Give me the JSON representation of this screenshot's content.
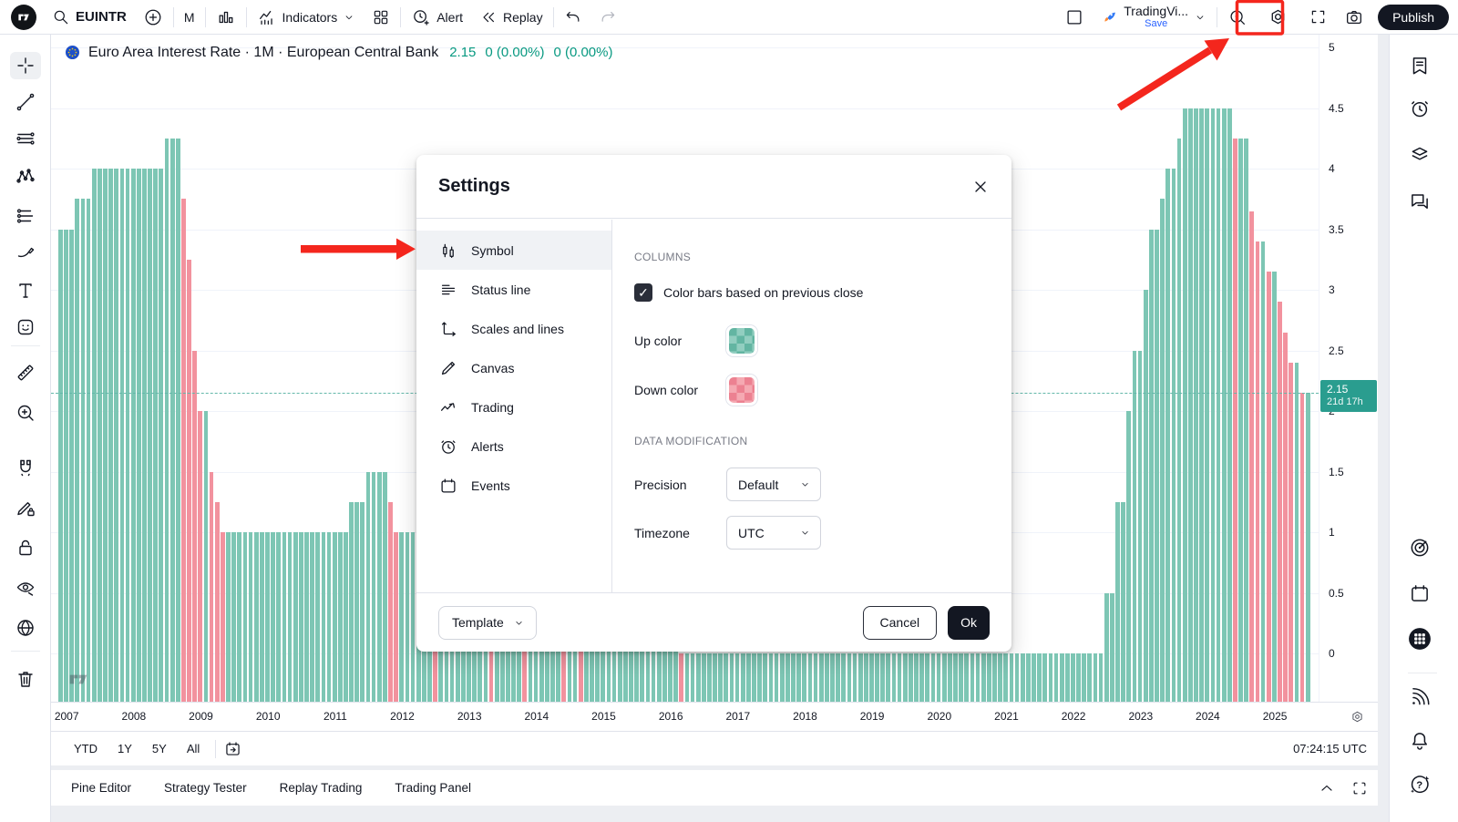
{
  "topbar": {
    "symbol_search": "EUINTR",
    "interval": "M",
    "indicators_label": "Indicators",
    "alert_label": "Alert",
    "replay_label": "Replay",
    "layout_name": "TradingVi...",
    "save_label": "Save",
    "publish_label": "Publish",
    "left_icons": [
      "tradingview-logo",
      "search-icon",
      "plus-circle-icon",
      "columns-chart-icon",
      "indicators-icon",
      "chevron-down-icon",
      "grid-layout-icon",
      "alert-clock-icon",
      "replay-icon",
      "undo-icon",
      "redo-icon"
    ],
    "right_icons": [
      "layout-square-icon",
      "rocket-icon",
      "chevron-down-icon",
      "bolt-search-icon",
      "settings-gear-icon",
      "fullscreen-icon",
      "camera-icon"
    ]
  },
  "chart_header": {
    "title": "Euro Area Interest Rate · 1M · European Central Bank",
    "price": "2.15",
    "change1": "0 (0.00%)",
    "change2": "0 (0.00%)",
    "flag_icon": "eu-flag-icon"
  },
  "left_toolbar_icons": [
    "crosshair-icon",
    "trend-line-icon",
    "parallel-lines-icon",
    "xabcd-pattern-icon",
    "fib-lines-icon",
    "brush-icon",
    "text-tool-icon",
    "emoji-sticker-icon",
    "ruler-icon",
    "zoom-in-icon",
    "magnet-icon",
    "drawing-edit-lock-icon",
    "lock-icon",
    "hide-drawings-eye-icon",
    "globe-icon",
    "trash-icon"
  ],
  "right_sidebar_icons": [
    "watchlist-icon",
    "alerts-clock-icon",
    "layers-icon",
    "chat-icon",
    "radar-icon",
    "calendar-icon",
    "apps-grid-icon",
    "feed-signal-icon",
    "notifications-bell-icon",
    "help-icon"
  ],
  "settings_dialog": {
    "title": "Settings",
    "tabs": [
      {
        "label": "Symbol",
        "icon": "candles-icon",
        "selected": true
      },
      {
        "label": "Status line",
        "icon": "status-lines-icon",
        "selected": false
      },
      {
        "label": "Scales and lines",
        "icon": "scales-axes-icon",
        "selected": false
      },
      {
        "label": "Canvas",
        "icon": "pencil-icon",
        "selected": false
      },
      {
        "label": "Trading",
        "icon": "trading-zigzag-icon",
        "selected": false
      },
      {
        "label": "Alerts",
        "icon": "alarm-clock-icon",
        "selected": false
      },
      {
        "label": "Events",
        "icon": "calendar-icon",
        "selected": false
      }
    ],
    "columns_section": "COLUMNS",
    "color_bars_label": "Color bars based on previous close",
    "color_bars_checked": true,
    "up_color_label": "Up color",
    "down_color_label": "Down color",
    "data_modification_section": "DATA MODIFICATION",
    "precision_label": "Precision",
    "precision_value": "Default",
    "timezone_label": "Timezone",
    "timezone_value": "UTC",
    "template_label": "Template",
    "cancel_label": "Cancel",
    "ok_label": "Ok"
  },
  "price_scale": {
    "ticks": [
      "5",
      "4.5",
      "4",
      "3.5",
      "3",
      "2.5",
      "2",
      "1.5",
      "1",
      "0.5",
      "0"
    ],
    "label_price": "2.15",
    "label_countdown": "21d 17h",
    "label_bg": "#2a9d8f"
  },
  "time_scale": {
    "years": [
      "2007",
      "2008",
      "2009",
      "2010",
      "2011",
      "2012",
      "2013",
      "2014",
      "2015",
      "2016",
      "2017",
      "2018",
      "2019",
      "2020",
      "2021",
      "2022",
      "2023",
      "2024",
      "2025"
    ]
  },
  "range_row": {
    "ranges": [
      "YTD",
      "1Y",
      "5Y",
      "All"
    ],
    "clock": "07:24:15 UTC"
  },
  "bottom_bar": {
    "tabs": [
      "Pine Editor",
      "Strategy Tester",
      "Replay Trading",
      "Trading Panel"
    ]
  },
  "chart_data": {
    "type": "bar",
    "title": "Euro Area Interest Rate",
    "interval": "1M",
    "frequency": "monthly",
    "start": "2006-12",
    "end": "2025-07",
    "ylim": [
      0,
      5
    ],
    "grid": "horizontal",
    "current_value": 2.15,
    "up_color": "#7dc6b4",
    "down_color": "#f2929e",
    "color_rule": "down color when value is lower than previous month, else up color",
    "values": [
      3.5,
      3.5,
      3.5,
      3.75,
      3.75,
      3.75,
      4,
      4,
      4,
      4,
      4,
      4,
      4,
      4,
      4,
      4,
      4,
      4,
      4,
      4.25,
      4.25,
      4.25,
      3.75,
      3.25,
      2.5,
      2,
      2,
      1.5,
      1.25,
      1,
      1,
      1,
      1,
      1,
      1,
      1,
      1,
      1,
      1,
      1,
      1,
      1,
      1,
      1,
      1,
      1,
      1,
      1,
      1,
      1,
      1,
      1,
      1.25,
      1.25,
      1.25,
      1.5,
      1.5,
      1.5,
      1.5,
      1.25,
      1,
      1,
      1,
      1,
      1,
      1,
      1,
      0.75,
      0.75,
      0.75,
      0.75,
      0.75,
      0.75,
      0.75,
      0.75,
      0.75,
      0.75,
      0.5,
      0.5,
      0.5,
      0.5,
      0.5,
      0.5,
      0.25,
      0.25,
      0.25,
      0.25,
      0.25,
      0.25,
      0.25,
      0.15,
      0.15,
      0.15,
      0.05,
      0.05,
      0.05,
      0.05,
      0.05,
      0.05,
      0.05,
      0.05,
      0.05,
      0.05,
      0.05,
      0.05,
      0.05,
      0.05,
      0.05,
      0.05,
      0.05,
      0.05,
      0,
      0,
      0,
      0,
      0,
      0,
      0,
      0,
      0,
      0,
      0,
      0,
      0,
      0,
      0,
      0,
      0,
      0,
      0,
      0,
      0,
      0,
      0,
      0,
      0,
      0,
      0,
      0,
      0,
      0,
      0,
      0,
      0,
      0,
      0,
      0,
      0,
      0,
      0,
      0,
      0,
      0,
      0,
      0,
      0,
      0,
      0,
      0,
      0,
      0,
      0,
      0,
      0,
      0,
      0,
      0,
      0,
      0,
      0,
      0,
      0,
      0,
      0,
      0,
      0,
      0,
      0,
      0,
      0,
      0,
      0,
      0,
      0,
      0,
      0,
      0,
      0.5,
      0.5,
      1.25,
      1.25,
      2,
      2.5,
      2.5,
      3,
      3.5,
      3.5,
      3.75,
      4,
      4,
      4.25,
      4.5,
      4.5,
      4.5,
      4.5,
      4.5,
      4.5,
      4.5,
      4.5,
      4.5,
      4.25,
      4.25,
      4.25,
      3.65,
      3.4,
      3.4,
      3.15,
      3.15,
      2.9,
      2.65,
      2.4,
      2.4,
      2.15,
      2.15
    ]
  },
  "annotations": {
    "highlight_box_target": "settings-gear-icon",
    "arrow_1_target": "settings-gear-icon",
    "arrow_2_target": "settings-dialog-tab-symbol",
    "color": "#f4261d"
  },
  "colors": {
    "accent_teal": "#089981",
    "panel_border": "#e0e3eb",
    "text": "#131722",
    "muted": "#787b86",
    "save_blue": "#2962ff"
  }
}
